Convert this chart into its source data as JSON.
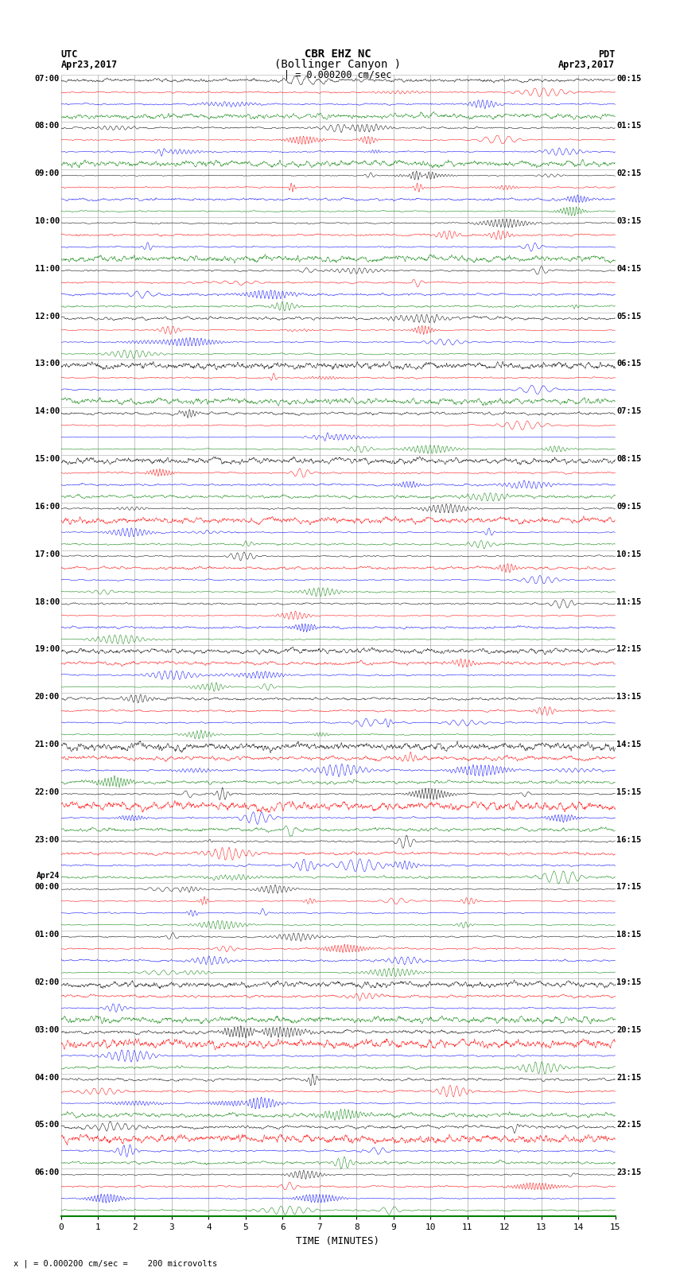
{
  "title_line1": "CBR EHZ NC",
  "title_line2": "(Bollinger Canyon )",
  "title_scale": "| = 0.000200 cm/sec",
  "left_label_top": "UTC",
  "left_label_date": "Apr23,2017",
  "right_label_top": "PDT",
  "right_label_date": "Apr23,2017",
  "bottom_note": "x | = 0.000200 cm/sec =    200 microvolts",
  "xlabel": "TIME (MINUTES)",
  "xticks": [
    0,
    1,
    2,
    3,
    4,
    5,
    6,
    7,
    8,
    9,
    10,
    11,
    12,
    13,
    14,
    15
  ],
  "trace_colors": [
    "black",
    "red",
    "blue",
    "green"
  ],
  "bg_color": "white",
  "num_hour_rows": 24,
  "traces_per_hour": 4,
  "utc_labels": [
    "07:00",
    "08:00",
    "09:00",
    "10:00",
    "11:00",
    "12:00",
    "13:00",
    "14:00",
    "15:00",
    "16:00",
    "17:00",
    "18:00",
    "19:00",
    "20:00",
    "21:00",
    "22:00",
    "23:00",
    "00:00",
    "01:00",
    "02:00",
    "03:00",
    "04:00",
    "05:00",
    "06:00"
  ],
  "apr24_group_idx": 17,
  "pdt_labels": [
    "00:15",
    "01:15",
    "02:15",
    "03:15",
    "04:15",
    "05:15",
    "06:15",
    "07:15",
    "08:15",
    "09:15",
    "10:15",
    "11:15",
    "12:15",
    "13:15",
    "14:15",
    "15:15",
    "16:15",
    "17:15",
    "18:15",
    "19:15",
    "20:15",
    "21:15",
    "22:15",
    "23:15"
  ]
}
